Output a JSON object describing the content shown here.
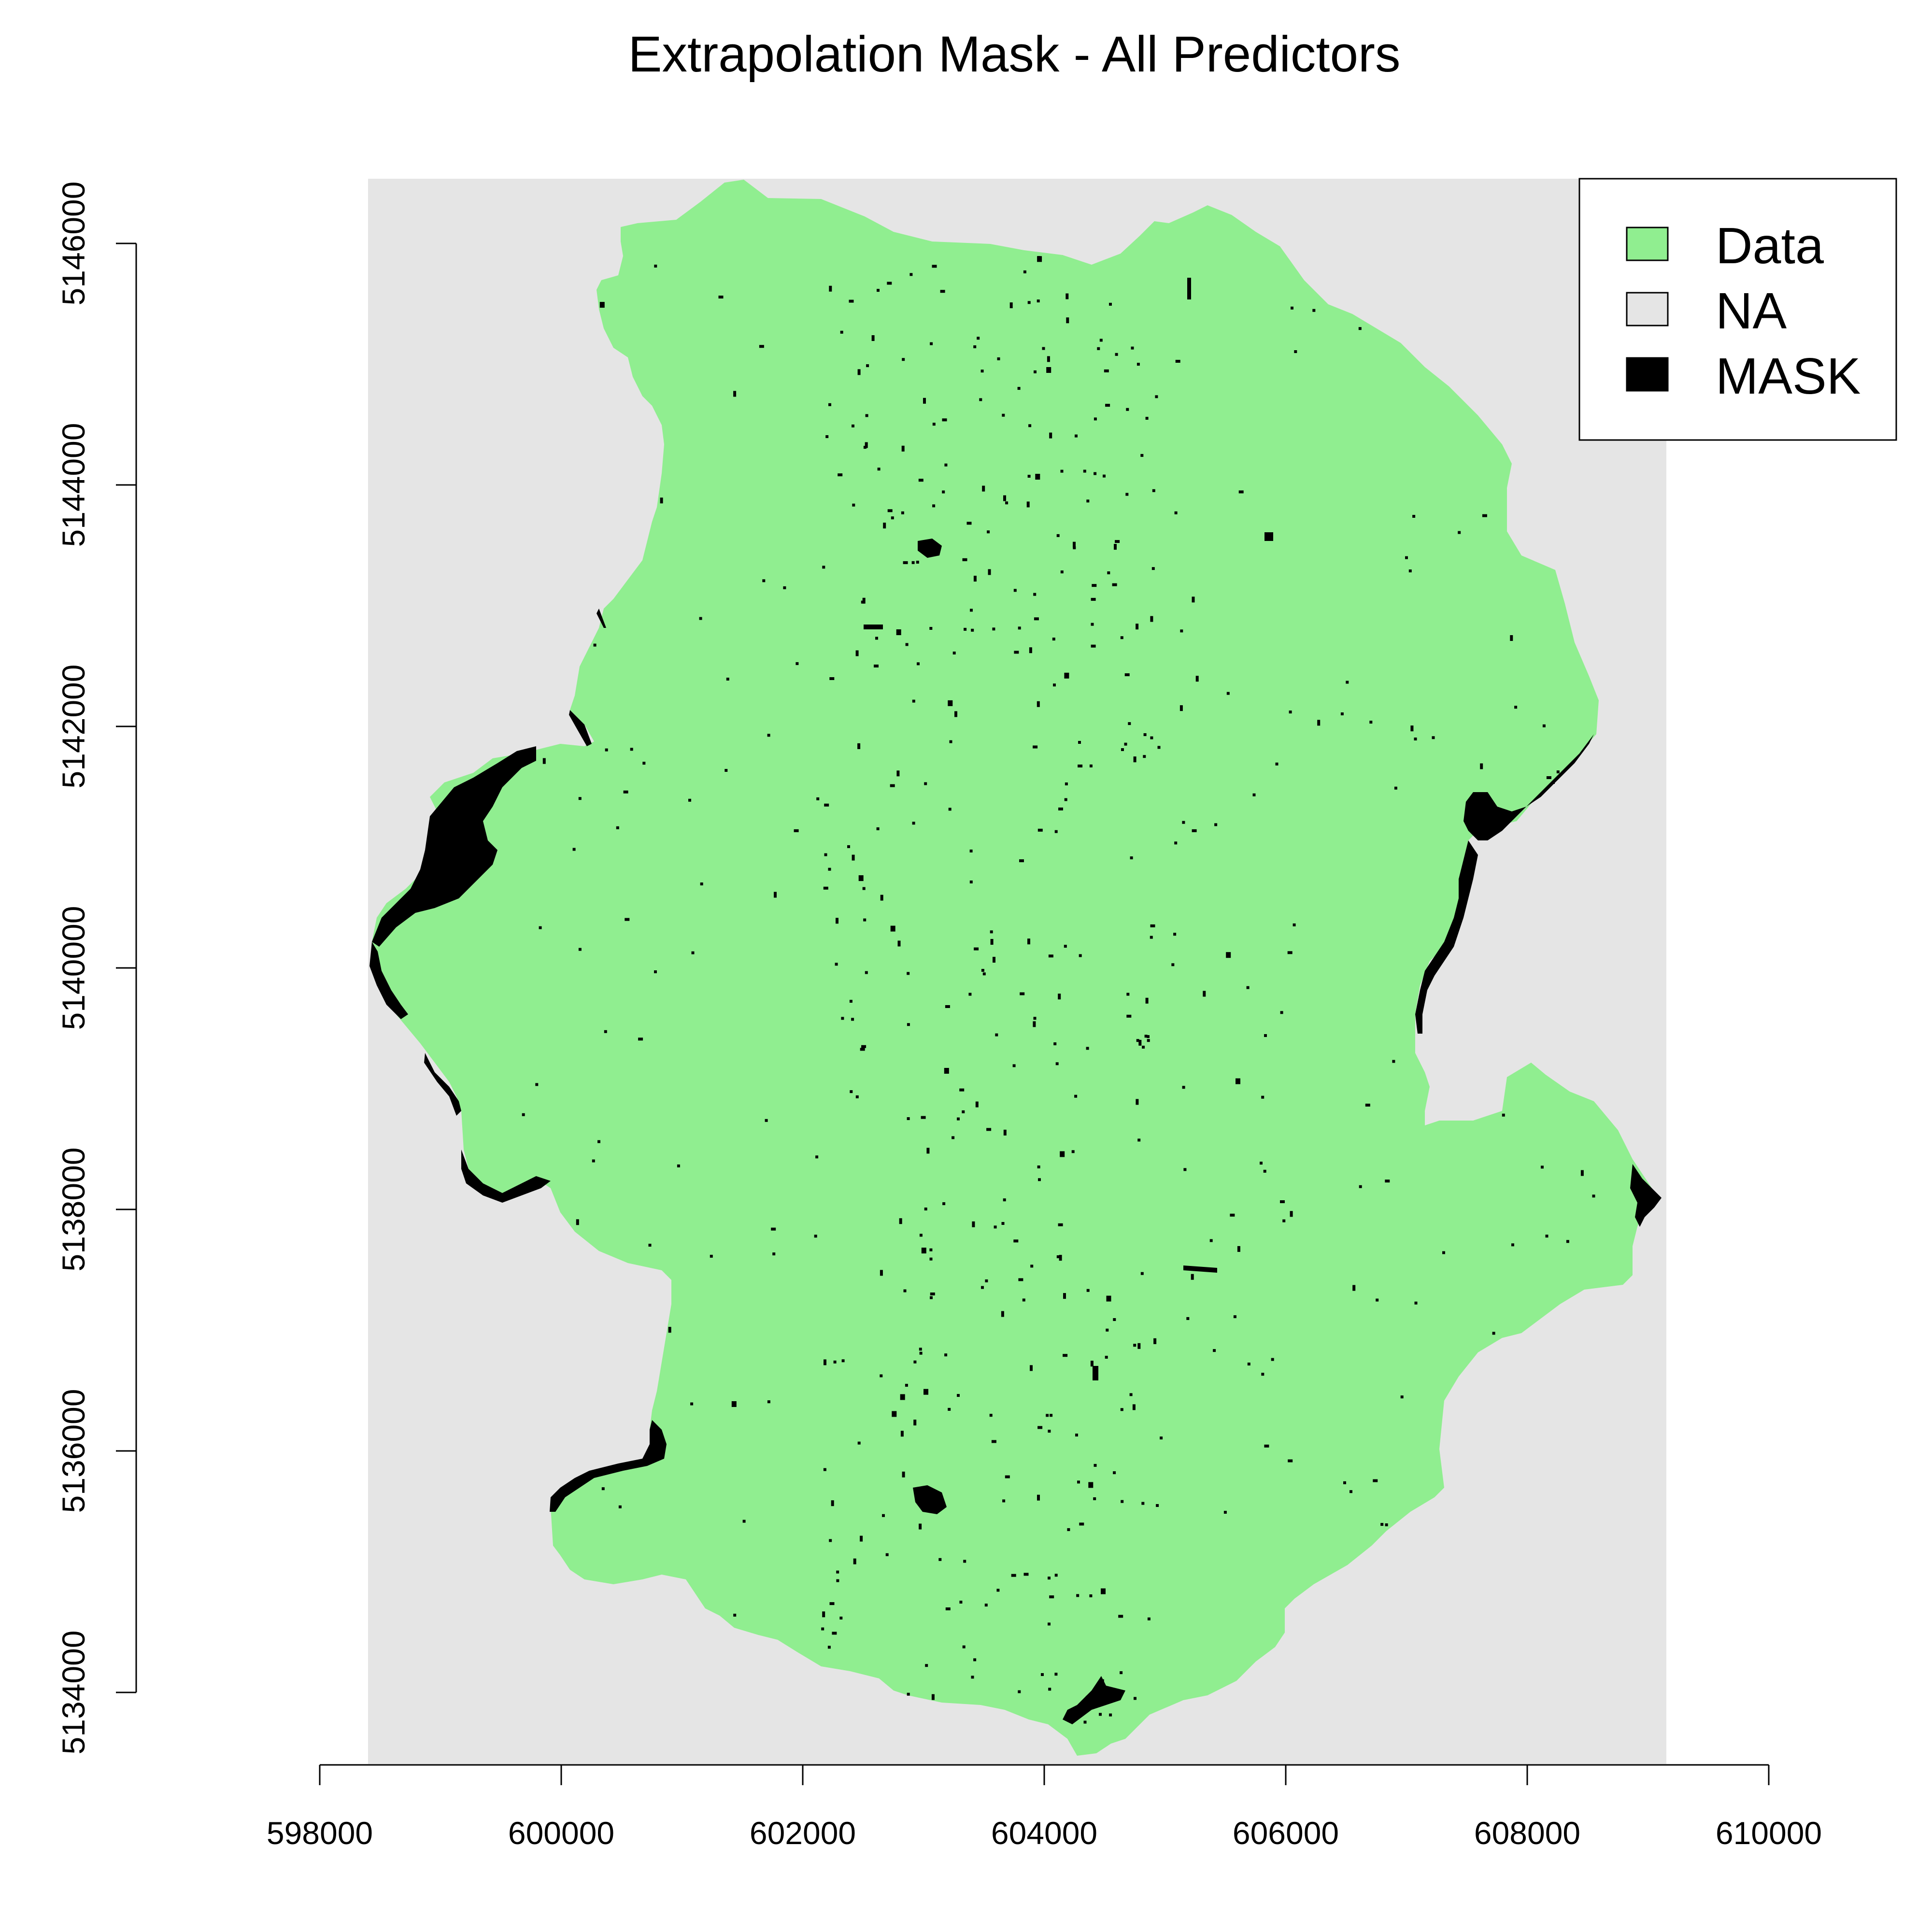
{
  "title": "Extrapolation Mask - All Predictors",
  "x_axis": {
    "ticks": [
      "598000",
      "600000",
      "602000",
      "604000",
      "606000",
      "608000",
      "610000"
    ],
    "values": [
      598000,
      600000,
      602000,
      604000,
      606000,
      608000,
      610000
    ]
  },
  "y_axis": {
    "ticks": [
      "5134000",
      "5136000",
      "5138000",
      "5140000",
      "5142000",
      "5144000",
      "5146000"
    ],
    "values": [
      5134000,
      5136000,
      5138000,
      5140000,
      5142000,
      5144000,
      5146000
    ]
  },
  "legend": [
    {
      "label": "Data",
      "color": "#90EE90"
    },
    {
      "label": "NA",
      "color": "#E5E5E5"
    },
    {
      "label": "MASK",
      "color": "#000000"
    }
  ],
  "colors": {
    "data": "#90EE90",
    "na": "#E5E5E5",
    "mask": "#000000"
  }
}
